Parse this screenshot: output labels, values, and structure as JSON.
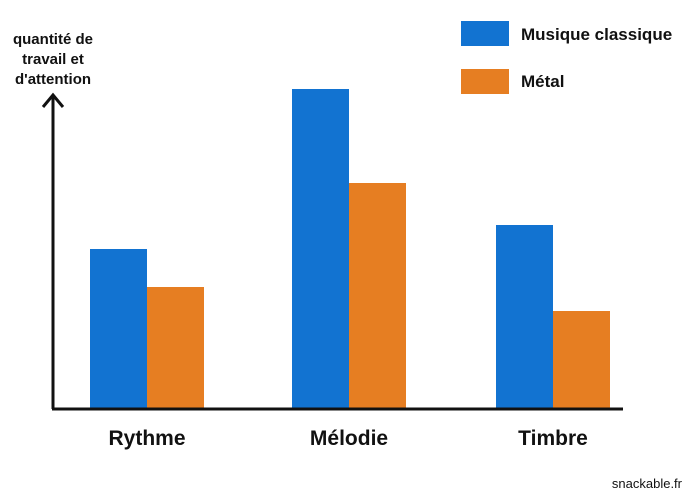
{
  "chart_data": {
    "type": "bar",
    "categories": [
      "Rythme",
      "Mélodie",
      "Timbre"
    ],
    "series": [
      {
        "name": "Musique classique",
        "values": [
          40,
          80,
          46
        ],
        "color": "#1273d1"
      },
      {
        "name": "Métal",
        "values": [
          30.5,
          56.5,
          24.5
        ],
        "color": "#e67e22"
      }
    ],
    "ylabel_lines": [
      "quantité de",
      "travail et",
      "d'attention"
    ],
    "ylim": [
      0,
      100
    ],
    "y_ticks": "none",
    "legend_position": "top-right",
    "grid": false,
    "axis_color": "#111111"
  },
  "watermark": "snackable.fr"
}
